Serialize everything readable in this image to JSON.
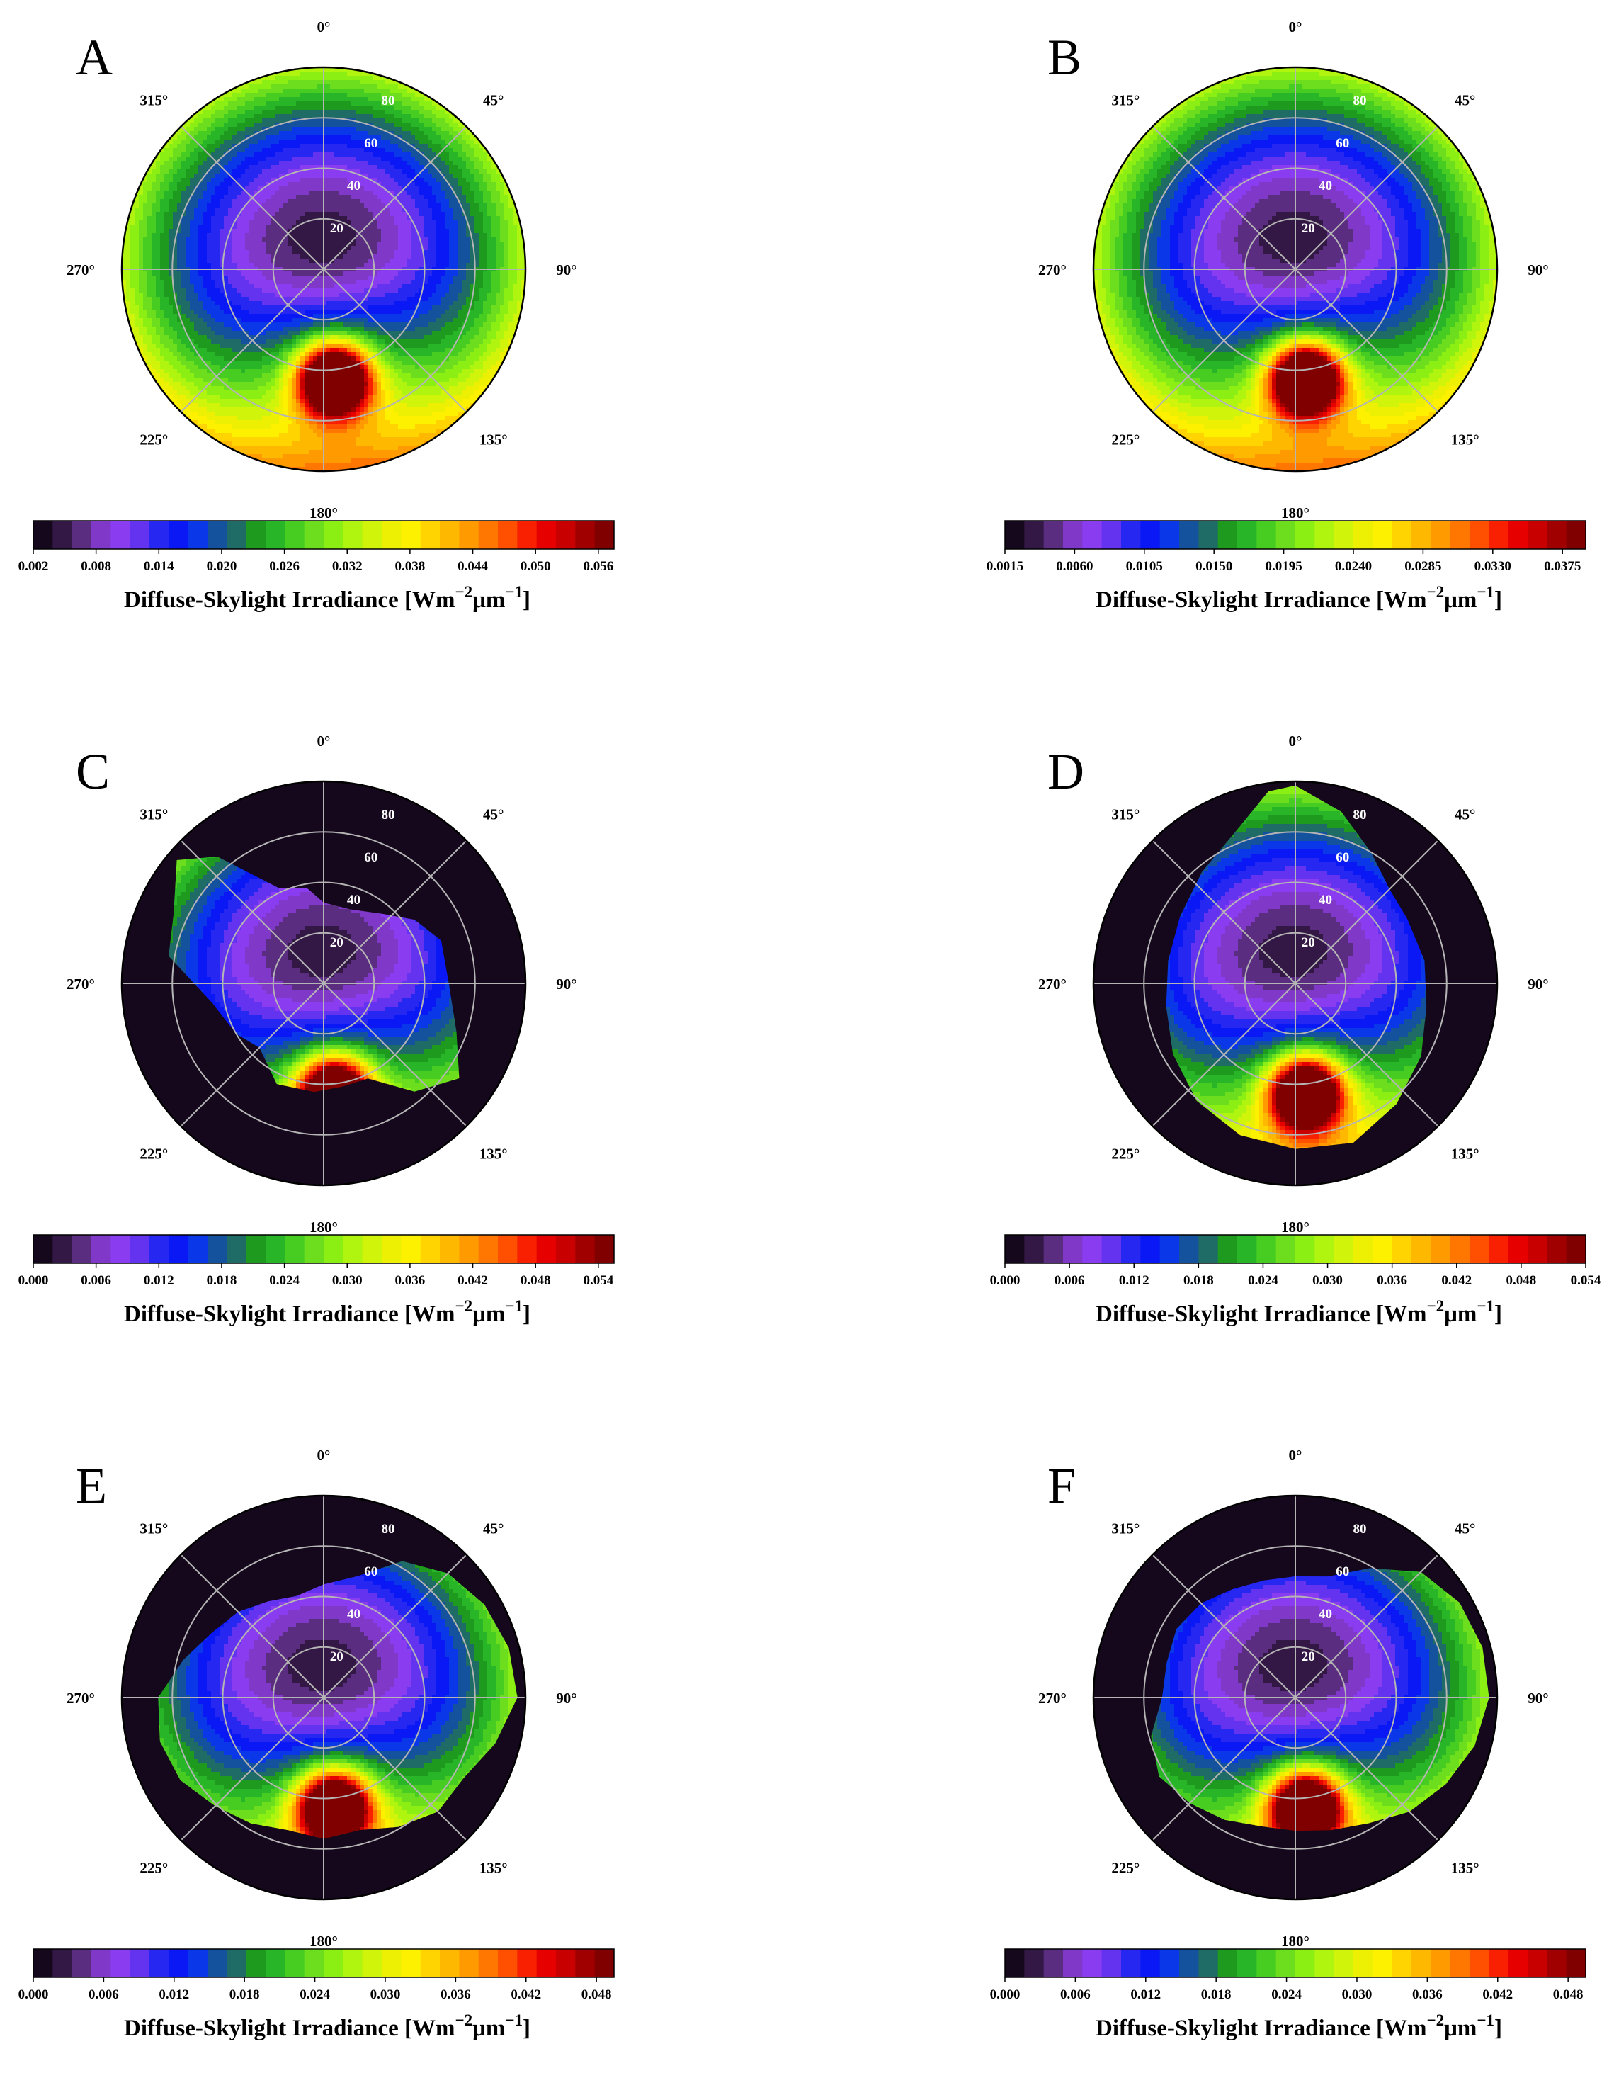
{
  "figure": {
    "cbar_label_main": "Diffuse-Skylight Irradiance [Wm",
    "cbar_label_exp1": "−2",
    "cbar_label_mid": "μm",
    "cbar_label_exp2": "−1",
    "cbar_label_close": "]"
  },
  "palette": [
    "#15081c",
    "#331745",
    "#5a2d80",
    "#8038c8",
    "#8a3cf0",
    "#6333f0",
    "#2727f2",
    "#0a18f5",
    "#0a37e8",
    "#14529e",
    "#1f6b66",
    "#1e9a1e",
    "#29b528",
    "#47cc22",
    "#6cde1e",
    "#8cef14",
    "#b0f510",
    "#d0f40a",
    "#eef004",
    "#fdf100",
    "#ffd400",
    "#ffb800",
    "#ff9a00",
    "#ff7700",
    "#ff4f00",
    "#f82000",
    "#e60000",
    "#c80000",
    "#a00000",
    "#800000"
  ],
  "polar_axes": {
    "direction_labels": [
      "0°",
      "45°",
      "90°",
      "135°",
      "180°",
      "225°",
      "270°",
      "315°"
    ],
    "radial_labels": [
      "20",
      "40",
      "60",
      "80"
    ]
  },
  "chart_data": [
    {
      "panel": "A",
      "type": "polar-contour",
      "title": "",
      "radial_axis": "zenith angle",
      "angular_axis": "azimuth",
      "rlim": [
        0,
        90
      ],
      "mask": "full",
      "ticks": [
        "0.002",
        "0.008",
        "0.014",
        "0.020",
        "0.026",
        "0.032",
        "0.038",
        "0.044",
        "0.050",
        "0.056"
      ],
      "vmin": 0.002,
      "vmax": 0.0575,
      "xlabel": "Diffuse-Skylight Irradiance [Wm−2μm−1]"
    },
    {
      "panel": "B",
      "type": "polar-contour",
      "title": "",
      "radial_axis": "zenith angle",
      "angular_axis": "azimuth",
      "rlim": [
        0,
        90
      ],
      "mask": "full",
      "ticks": [
        "0.0015",
        "0.0060",
        "0.0105",
        "0.0150",
        "0.0195",
        "0.0240",
        "0.0285",
        "0.0330",
        "0.0375"
      ],
      "vmin": 0.0015,
      "vmax": 0.039,
      "xlabel": "Diffuse-Skylight Irradiance [Wm−2μm−1]"
    },
    {
      "panel": "C",
      "type": "polar-contour",
      "title": "",
      "radial_axis": "zenith angle",
      "angular_axis": "azimuth",
      "rlim": [
        0,
        90
      ],
      "mask": "C",
      "ticks": [
        "0.000",
        "0.006",
        "0.012",
        "0.018",
        "0.024",
        "0.030",
        "0.036",
        "0.042",
        "0.048",
        "0.054"
      ],
      "vmin": 0.0,
      "vmax": 0.0555,
      "xlabel": "Diffuse-Skylight Irradiance [Wm−2μm−1]"
    },
    {
      "panel": "D",
      "type": "polar-contour",
      "title": "",
      "radial_axis": "zenith angle",
      "angular_axis": "azimuth",
      "rlim": [
        0,
        90
      ],
      "mask": "D",
      "ticks": [
        "0.000",
        "0.006",
        "0.012",
        "0.018",
        "0.024",
        "0.030",
        "0.036",
        "0.042",
        "0.048",
        "0.054"
      ],
      "vmin": 0.0,
      "vmax": 0.054,
      "xlabel": "Diffuse-Skylight Irradiance [Wm−2μm−1]"
    },
    {
      "panel": "E",
      "type": "polar-contour",
      "title": "",
      "radial_axis": "zenith angle",
      "angular_axis": "azimuth",
      "rlim": [
        0,
        90
      ],
      "mask": "E",
      "ticks": [
        "0.000",
        "0.006",
        "0.012",
        "0.018",
        "0.024",
        "0.030",
        "0.036",
        "0.042",
        "0.048"
      ],
      "vmin": 0.0,
      "vmax": 0.0495,
      "xlabel": "Diffuse-Skylight Irradiance [Wm−2μm−1]"
    },
    {
      "panel": "F",
      "type": "polar-contour",
      "title": "",
      "radial_axis": "zenith angle",
      "angular_axis": "azimuth",
      "rlim": [
        0,
        90
      ],
      "mask": "F",
      "ticks": [
        "0.000",
        "0.006",
        "0.012",
        "0.018",
        "0.024",
        "0.030",
        "0.036",
        "0.042",
        "0.048"
      ],
      "vmin": 0.0,
      "vmax": 0.0495,
      "xlabel": "Diffuse-Skylight Irradiance [Wm−2μm−1]"
    }
  ]
}
